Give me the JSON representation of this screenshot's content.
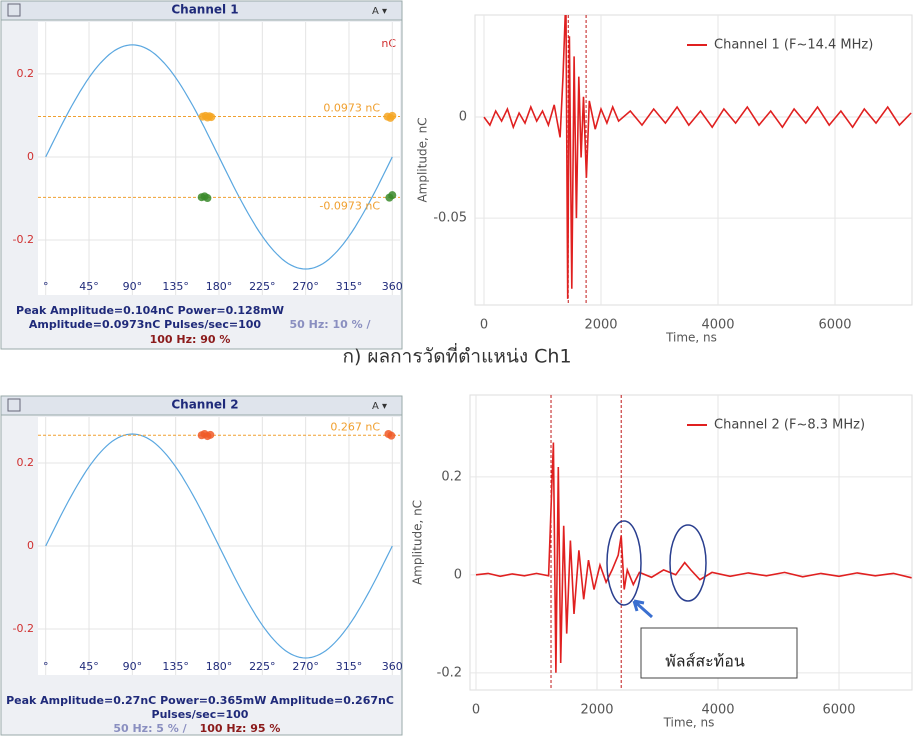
{
  "caption": "ก) ผลการวัดที่ตำแหน่ง Ch1",
  "chart_data": [
    {
      "type": "phase",
      "title": "Channel 1",
      "unit": "nC",
      "xlim": [
        -8,
        368
      ],
      "ylim": [
        -0.3325,
        0.325
      ],
      "xticks": [
        {
          "value": 0,
          "label": "°"
        },
        {
          "value": 45,
          "label": "45°"
        },
        {
          "value": 90,
          "label": "90°"
        },
        {
          "value": 135,
          "label": "135°"
        },
        {
          "value": 180,
          "label": "180°"
        },
        {
          "value": 225,
          "label": "225°"
        },
        {
          "value": 270,
          "label": "270°"
        },
        {
          "value": 315,
          "label": "315°"
        },
        360
      ],
      "yticks": [
        -0.2,
        0,
        0.2
      ],
      "grid": true,
      "reference_wave_amplitude": 0.27,
      "reference_wave_color": "#5aa7e0",
      "thresholds": [
        {
          "value": 0.0973,
          "label": "0.0973 nC"
        },
        {
          "value": -0.0973,
          "label": "-0.0973 nC"
        }
      ],
      "threshold_color": "#f0a030",
      "series": [
        {
          "color": "#f5a623",
          "x": [
            163,
            166,
            168,
            170,
            172,
            355,
            358,
            360
          ],
          "values": [
            0.097,
            0.099,
            0.095,
            0.098,
            0.096,
            0.097,
            0.094,
            0.099
          ]
        },
        {
          "color": "#3a8a2a",
          "x": [
            162,
            165,
            168,
            357,
            360
          ],
          "values": [
            -0.097,
            -0.095,
            -0.099,
            -0.098,
            -0.092
          ]
        }
      ],
      "info": [
        {
          "text": "Peak Amplitude=0.104nC    Power=0.128mW",
          "color": "#1f2a7a"
        },
        {
          "text": "Amplitude=0.0973nC  Pulses/sec=100",
          "color": "#1f2a7a"
        },
        {
          "text": "50 Hz: 10 % /",
          "color": "#8a8fc0"
        },
        {
          "text": "100 Hz: 90 %",
          "color": "#8b1a1a"
        }
      ]
    },
    {
      "type": "line",
      "ylabel": "Amplitude, nC",
      "xlabel": "Time, ns",
      "xlim": [
        -154,
        7316
      ],
      "ylim": [
        -0.093,
        0.0505
      ],
      "xticks": [
        0,
        2000,
        4000,
        6000
      ],
      "yticks": [
        -0.05,
        0
      ],
      "grid": true,
      "markers_x": [
        1440,
        1745
      ],
      "x": [
        0,
        100,
        200,
        300,
        400,
        500,
        600,
        700,
        800,
        900,
        1000,
        1100,
        1200,
        1300,
        1350,
        1400,
        1430,
        1460,
        1500,
        1540,
        1580,
        1620,
        1660,
        1700,
        1750,
        1800,
        1900,
        2000,
        2100,
        2200,
        2300,
        2500,
        2700,
        2900,
        3100,
        3300,
        3500,
        3700,
        3900,
        4100,
        4300,
        4500,
        4700,
        4900,
        5100,
        5300,
        5500,
        5700,
        5900,
        6100,
        6300,
        6500,
        6700,
        6900,
        7100,
        7300
      ],
      "series": [
        {
          "name": "Channel 1 (F~14.4 MHz)",
          "color": "#e02020",
          "values": [
            0,
            -0.004,
            0.003,
            -0.002,
            0.004,
            -0.005,
            0.002,
            -0.003,
            0.005,
            -0.002,
            0.003,
            -0.004,
            0.006,
            -0.01,
            0.02,
            0.06,
            -0.09,
            0.04,
            -0.085,
            0.03,
            -0.05,
            0.02,
            -0.02,
            0.01,
            -0.03,
            0.008,
            -0.006,
            0.004,
            -0.003,
            0.005,
            -0.002,
            0.003,
            -0.004,
            0.004,
            -0.003,
            0.005,
            -0.004,
            0.003,
            -0.005,
            0.004,
            -0.003,
            0.005,
            -0.004,
            0.003,
            -0.005,
            0.004,
            -0.003,
            0.005,
            -0.004,
            0.003,
            -0.005,
            0.004,
            -0.003,
            0.005,
            -0.004,
            0.002
          ]
        }
      ]
    },
    {
      "type": "phase",
      "title": "Channel 2",
      "xlim": [
        -8,
        368
      ],
      "ylim": [
        -0.311,
        0.311
      ],
      "xticks": [
        {
          "value": 0,
          "label": "°"
        },
        {
          "value": 45,
          "label": "45°"
        },
        {
          "value": 90,
          "label": "90°"
        },
        {
          "value": 135,
          "label": "135°"
        },
        {
          "value": 180,
          "label": "180°"
        },
        {
          "value": 225,
          "label": "225°"
        },
        {
          "value": 270,
          "label": "270°"
        },
        {
          "value": 315,
          "label": "315°"
        },
        360
      ],
      "yticks": [
        -0.2,
        0,
        0.2
      ],
      "grid": true,
      "reference_wave_amplitude": 0.27,
      "reference_wave_color": "#5aa7e0",
      "thresholds": [
        {
          "value": 0.267,
          "label": "0.267 nC"
        }
      ],
      "threshold_color": "#f0a030",
      "series": [
        {
          "color": "#f05a28",
          "x": [
            162,
            165,
            168,
            171,
            356,
            359
          ],
          "values": [
            0.267,
            0.27,
            0.265,
            0.268,
            0.27,
            0.266
          ]
        }
      ],
      "info": [
        {
          "text": "Peak Amplitude=0.27nC    Power=0.365mW    Amplitude=0.267nC",
          "color": "#1f2a7a"
        },
        {
          "text": "Pulses/sec=100",
          "color": "#1f2a7a"
        },
        {
          "text": "50 Hz: 5 % /",
          "color": "#8a8fc0"
        },
        {
          "text": "100 Hz: 95 %",
          "color": "#8b1a1a"
        }
      ]
    },
    {
      "type": "line",
      "ylabel": "Amplitude, nC",
      "xlabel": "Time, ns",
      "xlim": [
        -99,
        7206
      ],
      "ylim": [
        -0.235,
        0.367
      ],
      "xticks": [
        0,
        2000,
        4000,
        6000
      ],
      "yticks": [
        -0.2,
        0,
        0.2
      ],
      "grid": true,
      "markers_x": [
        1240,
        2400
      ],
      "callout": "พัลส์สะท้อน",
      "x": [
        0,
        200,
        400,
        600,
        800,
        1000,
        1200,
        1280,
        1320,
        1360,
        1400,
        1450,
        1500,
        1560,
        1620,
        1700,
        1780,
        1860,
        1950,
        2050,
        2150,
        2250,
        2350,
        2400,
        2450,
        2500,
        2600,
        2700,
        2900,
        3100,
        3300,
        3450,
        3550,
        3700,
        3900,
        4200,
        4500,
        4800,
        5100,
        5400,
        5700,
        6000,
        6300,
        6600,
        6900,
        7200
      ],
      "series": [
        {
          "name": "Channel 2 (F~8.3 MHz)",
          "color": "#e02020",
          "values": [
            0,
            0.003,
            -0.003,
            0.002,
            -0.002,
            0.003,
            -0.002,
            0.27,
            -0.2,
            0.22,
            -0.18,
            0.1,
            -0.12,
            0.07,
            -0.08,
            0.05,
            -0.05,
            0.03,
            -0.03,
            0.02,
            -0.015,
            0.01,
            0.04,
            0.08,
            -0.03,
            0.01,
            -0.02,
            0.005,
            -0.005,
            0.01,
            0,
            0.025,
            0.01,
            -0.01,
            0.005,
            -0.003,
            0.004,
            -0.002,
            0.005,
            -0.004,
            0.003,
            -0.003,
            0.004,
            -0.002,
            0.003,
            -0.006
          ]
        }
      ]
    }
  ]
}
